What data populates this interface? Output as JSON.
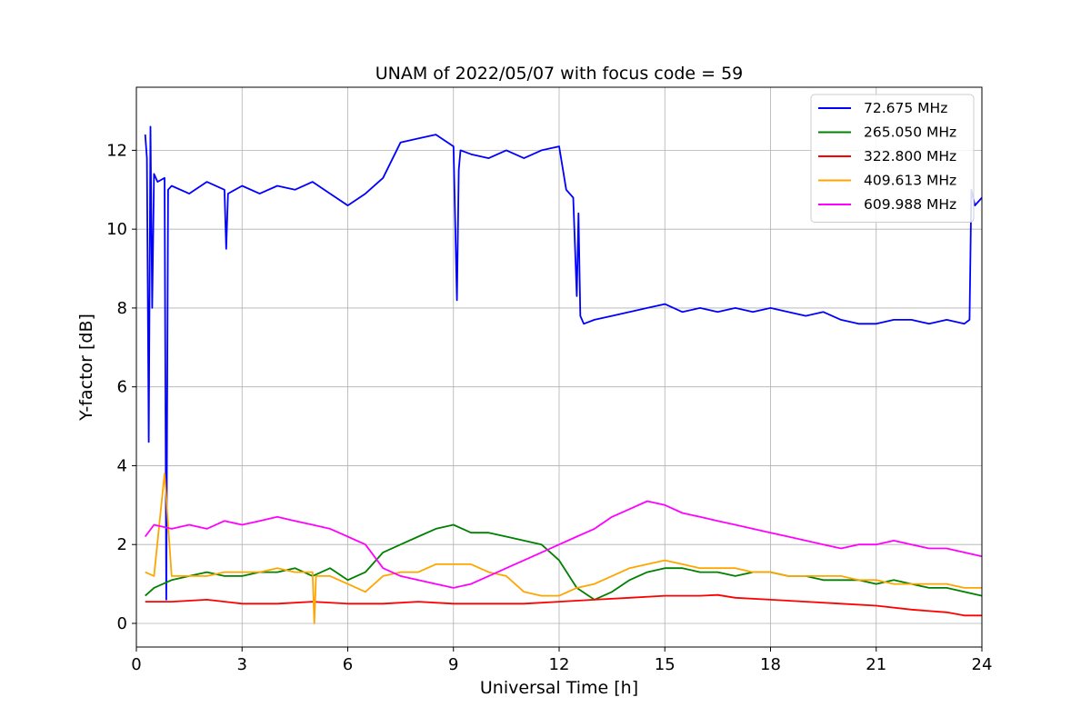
{
  "chart_data": {
    "type": "line",
    "title": "UNAM of 2022/05/07 with focus code = 59",
    "xlabel": "Universal Time [h]",
    "ylabel": "Y-factor [dB]",
    "xlim": [
      0,
      24
    ],
    "ylim": [
      -0.6,
      13.6
    ],
    "x_ticks": [
      0,
      3,
      6,
      9,
      12,
      15,
      18,
      21,
      24
    ],
    "y_ticks": [
      0,
      2,
      4,
      6,
      8,
      10,
      12
    ],
    "grid": true,
    "legend_position": "top-right",
    "series": [
      {
        "name": "  72.675 MHz",
        "color": "#0000ff",
        "x": [
          0.25,
          0.3,
          0.35,
          0.4,
          0.45,
          0.5,
          0.6,
          0.8,
          0.85,
          0.9,
          1.0,
          1.5,
          2.0,
          2.5,
          2.55,
          2.6,
          3.0,
          3.5,
          4.0,
          4.5,
          5.0,
          5.5,
          6.0,
          6.5,
          7.0,
          7.5,
          8.0,
          8.5,
          9.0,
          9.1,
          9.15,
          9.2,
          9.5,
          10.0,
          10.5,
          11.0,
          11.5,
          12.0,
          12.2,
          12.4,
          12.5,
          12.55,
          12.6,
          12.7,
          13.0,
          13.5,
          14.0,
          14.5,
          15.0,
          15.5,
          16.0,
          16.5,
          17.0,
          17.5,
          18.0,
          18.5,
          19.0,
          19.5,
          20.0,
          20.5,
          21.0,
          21.5,
          22.0,
          22.5,
          23.0,
          23.5,
          23.65,
          23.7,
          23.8,
          24.0
        ],
        "values": [
          12.4,
          11.8,
          4.6,
          12.6,
          8.0,
          11.4,
          11.2,
          11.3,
          0.6,
          11.0,
          11.1,
          10.9,
          11.2,
          11.0,
          9.5,
          10.9,
          11.1,
          10.9,
          11.1,
          11.0,
          11.2,
          10.9,
          10.6,
          10.9,
          11.3,
          12.2,
          12.3,
          12.4,
          12.1,
          8.2,
          11.5,
          12.0,
          11.9,
          11.8,
          12.0,
          11.8,
          12.0,
          12.1,
          11.0,
          10.8,
          8.3,
          10.4,
          7.8,
          7.6,
          7.7,
          7.8,
          7.9,
          8.0,
          8.1,
          7.9,
          8.0,
          7.9,
          8.0,
          7.9,
          8.0,
          7.9,
          7.8,
          7.9,
          7.7,
          7.6,
          7.6,
          7.7,
          7.7,
          7.6,
          7.7,
          7.6,
          7.7,
          11.0,
          10.6,
          10.8
        ]
      },
      {
        "name": "265.050 MHz",
        "color": "#008000",
        "x": [
          0.25,
          0.5,
          1.0,
          1.5,
          2.0,
          2.5,
          3.0,
          3.5,
          4.0,
          4.5,
          5.0,
          5.5,
          6.0,
          6.5,
          7.0,
          7.5,
          8.0,
          8.5,
          9.0,
          9.5,
          10.0,
          10.5,
          11.0,
          11.5,
          12.0,
          12.5,
          13.0,
          13.5,
          14.0,
          14.5,
          15.0,
          15.5,
          16.0,
          16.5,
          17.0,
          17.5,
          18.0,
          18.5,
          19.0,
          19.5,
          20.0,
          20.5,
          21.0,
          21.5,
          22.0,
          22.5,
          23.0,
          23.5,
          24.0
        ],
        "values": [
          0.7,
          0.9,
          1.1,
          1.2,
          1.3,
          1.2,
          1.2,
          1.3,
          1.3,
          1.4,
          1.2,
          1.4,
          1.1,
          1.3,
          1.8,
          2.0,
          2.2,
          2.4,
          2.5,
          2.3,
          2.3,
          2.2,
          2.1,
          2.0,
          1.6,
          0.9,
          0.6,
          0.8,
          1.1,
          1.3,
          1.4,
          1.4,
          1.3,
          1.3,
          1.2,
          1.3,
          1.3,
          1.2,
          1.2,
          1.1,
          1.1,
          1.1,
          1.0,
          1.1,
          1.0,
          0.9,
          0.9,
          0.8,
          0.7
        ]
      },
      {
        "name": "322.800 MHz",
        "color": "#ff0000",
        "x": [
          0.25,
          1.0,
          2.0,
          3.0,
          4.0,
          5.0,
          6.0,
          7.0,
          8.0,
          9.0,
          10.0,
          11.0,
          12.0,
          13.0,
          14.0,
          15.0,
          16.0,
          16.5,
          17.0,
          18.0,
          19.0,
          20.0,
          21.0,
          22.0,
          23.0,
          23.5,
          24.0
        ],
        "values": [
          0.55,
          0.55,
          0.6,
          0.5,
          0.5,
          0.55,
          0.5,
          0.5,
          0.55,
          0.5,
          0.5,
          0.5,
          0.55,
          0.6,
          0.65,
          0.7,
          0.7,
          0.72,
          0.65,
          0.6,
          0.55,
          0.5,
          0.45,
          0.35,
          0.28,
          0.2,
          0.2
        ]
      },
      {
        "name": "409.613 MHz",
        "color": "#ffa500",
        "x": [
          0.25,
          0.5,
          0.8,
          1.0,
          1.5,
          2.0,
          2.5,
          3.0,
          3.5,
          4.0,
          4.5,
          5.0,
          5.05,
          5.1,
          5.5,
          6.0,
          6.5,
          7.0,
          7.5,
          8.0,
          8.5,
          9.0,
          9.5,
          10.0,
          10.5,
          11.0,
          11.5,
          12.0,
          12.5,
          13.0,
          13.5,
          14.0,
          14.5,
          15.0,
          15.5,
          16.0,
          16.5,
          17.0,
          17.5,
          18.0,
          18.5,
          19.0,
          19.5,
          20.0,
          20.5,
          21.0,
          21.5,
          22.0,
          22.5,
          23.0,
          23.5,
          24.0
        ],
        "values": [
          1.3,
          1.2,
          3.8,
          1.2,
          1.2,
          1.2,
          1.3,
          1.3,
          1.3,
          1.4,
          1.3,
          1.3,
          0.0,
          1.2,
          1.2,
          1.0,
          0.8,
          1.2,
          1.3,
          1.3,
          1.5,
          1.5,
          1.5,
          1.3,
          1.2,
          0.8,
          0.7,
          0.7,
          0.9,
          1.0,
          1.2,
          1.4,
          1.5,
          1.6,
          1.5,
          1.4,
          1.4,
          1.4,
          1.3,
          1.3,
          1.2,
          1.2,
          1.2,
          1.2,
          1.1,
          1.1,
          1.0,
          1.0,
          1.0,
          1.0,
          0.9,
          0.9
        ]
      },
      {
        "name": "609.988 MHz",
        "color": "#ff00ff",
        "x": [
          0.25,
          0.5,
          1.0,
          1.5,
          2.0,
          2.5,
          3.0,
          3.5,
          4.0,
          4.5,
          5.0,
          5.5,
          6.0,
          6.5,
          7.0,
          7.5,
          8.0,
          8.5,
          9.0,
          9.5,
          10.0,
          10.5,
          11.0,
          11.5,
          12.0,
          12.5,
          13.0,
          13.5,
          14.0,
          14.5,
          15.0,
          15.5,
          16.0,
          16.5,
          17.0,
          17.5,
          18.0,
          18.5,
          19.0,
          19.5,
          20.0,
          20.5,
          21.0,
          21.5,
          22.0,
          22.5,
          23.0,
          23.5,
          24.0
        ],
        "values": [
          2.2,
          2.5,
          2.4,
          2.5,
          2.4,
          2.6,
          2.5,
          2.6,
          2.7,
          2.6,
          2.5,
          2.4,
          2.2,
          2.0,
          1.4,
          1.2,
          1.1,
          1.0,
          0.9,
          1.0,
          1.2,
          1.4,
          1.6,
          1.8,
          2.0,
          2.2,
          2.4,
          2.7,
          2.9,
          3.1,
          3.0,
          2.8,
          2.7,
          2.6,
          2.5,
          2.4,
          2.3,
          2.2,
          2.1,
          2.0,
          1.9,
          2.0,
          2.0,
          2.1,
          2.0,
          1.9,
          1.9,
          1.8,
          1.7
        ]
      }
    ]
  }
}
